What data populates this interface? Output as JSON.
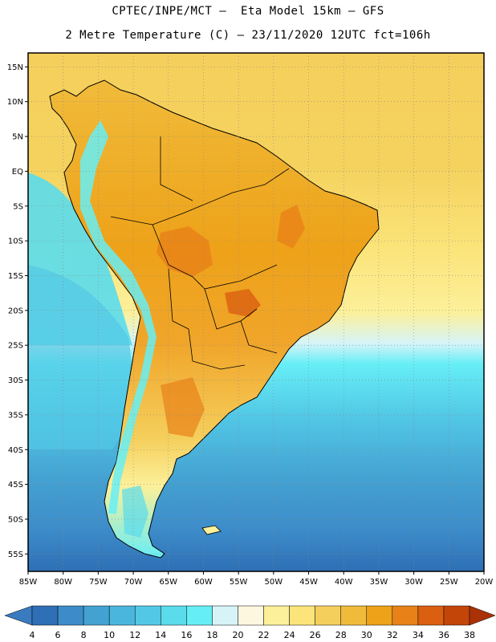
{
  "header": {
    "title_line1": "CPTEC/INPE/MCT –  Eta Model 15km – GFS",
    "title_line2": "2 Metre Temperature (C) – 23/11/2020 12UTC fct=106h"
  },
  "map": {
    "lon_range": [
      -85,
      -20
    ],
    "lat_range": [
      -57.5,
      17
    ],
    "lat_ticks": [
      "15N",
      "10N",
      "5N",
      "EQ",
      "5S",
      "10S",
      "15S",
      "20S",
      "25S",
      "30S",
      "35S",
      "40S",
      "45S",
      "50S",
      "55S"
    ],
    "lat_values": [
      15,
      10,
      5,
      0,
      -5,
      -10,
      -15,
      -20,
      -25,
      -30,
      -35,
      -40,
      -45,
      -50,
      -55
    ],
    "lon_ticks": [
      "85W",
      "80W",
      "75W",
      "70W",
      "65W",
      "60W",
      "55W",
      "50W",
      "45W",
      "40W",
      "35W",
      "30W",
      "25W",
      "20W"
    ],
    "lon_values": [
      -85,
      -80,
      -75,
      -70,
      -65,
      -60,
      -55,
      -50,
      -45,
      -40,
      -35,
      -30,
      -25,
      -20
    ]
  },
  "colorbar": {
    "labels": [
      "4",
      "6",
      "8",
      "10",
      "12",
      "14",
      "16",
      "18",
      "20",
      "22",
      "24",
      "26",
      "28",
      "30",
      "32",
      "34",
      "36",
      "38"
    ],
    "colors": [
      "#3a7bbf",
      "#2e6fb5",
      "#3d8cc9",
      "#44a2d2",
      "#4bb6dd",
      "#52c8e6",
      "#5adcec",
      "#66eef6",
      "#d6f4f8",
      "#fdf7df",
      "#fcf09a",
      "#fbe47a",
      "#f5cf5c",
      "#f0bb3a",
      "#eea219",
      "#e88218",
      "#db5f10",
      "#c34508",
      "#aa3206"
    ]
  },
  "colors": {
    "ocean_warm": "#f5cf5c",
    "ocean_mid": "#fbe47a",
    "ocean_cool": "#5adcec",
    "land_hot": "#e88218",
    "andes_cold": "#66eef6"
  }
}
